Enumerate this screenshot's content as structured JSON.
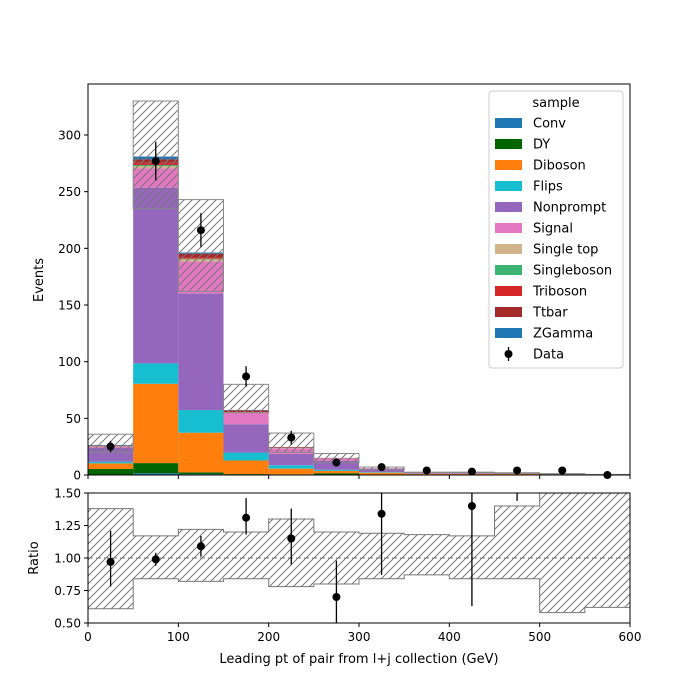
{
  "chart_data": [
    {
      "type": "bar",
      "subtype": "stacked-histogram",
      "ylabel": "Events",
      "xlim": [
        0,
        600
      ],
      "ylim": [
        0,
        345
      ],
      "yticks": [
        0,
        50,
        100,
        150,
        200,
        250,
        300
      ],
      "bin_edges": [
        0,
        50,
        100,
        150,
        200,
        250,
        300,
        350,
        400,
        450,
        500,
        550,
        600
      ],
      "legend": {
        "title": "sample",
        "placement": "top-right"
      },
      "series": [
        {
          "name": "Conv",
          "color": "#1f77b4",
          "values": [
            0.3,
            1.5,
            0.8,
            0.3,
            0.1,
            0.1,
            0,
            0,
            0,
            0,
            0,
            0
          ]
        },
        {
          "name": "DY",
          "color": "#006400",
          "values": [
            5,
            9,
            1.5,
            0.5,
            0.5,
            1.5,
            0,
            0,
            0,
            0,
            0,
            0
          ]
        },
        {
          "name": "Diboson",
          "color": "#ff7f0e",
          "values": [
            5,
            70,
            35,
            12,
            5,
            2,
            2,
            1,
            1,
            1,
            1,
            0
          ]
        },
        {
          "name": "Flips",
          "color": "#17becf",
          "values": [
            1.5,
            18,
            20,
            7,
            3,
            1,
            0.5,
            0,
            0,
            0,
            0,
            0
          ]
        },
        {
          "name": "Nonprompt",
          "color": "#9467bd",
          "values": [
            12,
            155,
            103,
            25,
            10,
            8,
            3,
            0.5,
            0.5,
            0.3,
            0,
            0
          ]
        },
        {
          "name": "Signal",
          "color": "#e377c2",
          "values": [
            1,
            17,
            28,
            10,
            5,
            2,
            0.5,
            0.3,
            0.2,
            0.2,
            0,
            0
          ]
        },
        {
          "name": "Single top",
          "color": "#d2b48c",
          "values": [
            0.2,
            2,
            2,
            0.5,
            0.2,
            0.1,
            0,
            0,
            0,
            0,
            0,
            0
          ]
        },
        {
          "name": "Singleboson",
          "color": "#3cb371",
          "values": [
            0.2,
            1,
            0.5,
            0.2,
            0.1,
            0,
            0,
            0,
            0,
            0,
            0,
            0
          ]
        },
        {
          "name": "Triboson",
          "color": "#d62728",
          "values": [
            0.2,
            2,
            1.5,
            0.5,
            0.2,
            0.1,
            0,
            0,
            0,
            0,
            0,
            0
          ]
        },
        {
          "name": "Ttbar",
          "color": "#a52a2a",
          "values": [
            0.5,
            3,
            3,
            1,
            0.5,
            0.2,
            0,
            0,
            0,
            0,
            0,
            0
          ]
        },
        {
          "name": "ZGamma",
          "color": "#1f77b4",
          "values": [
            0.5,
            2.5,
            1,
            0.3,
            0.1,
            0.1,
            0,
            0,
            0,
            0,
            0,
            0
          ]
        }
      ],
      "uncertainty_band": {
        "down": [
          20,
          235,
          162,
          55,
          20,
          11,
          4.5,
          2,
          2,
          1.5,
          0.8,
          0.3
        ],
        "up": [
          36,
          330,
          243,
          80,
          37,
          19,
          7,
          2.5,
          2.5,
          2,
          1.2,
          0.5
        ]
      },
      "data": {
        "name": "Data",
        "color": "#000000",
        "x": [
          25,
          75,
          125,
          175,
          225,
          275,
          325,
          375,
          425,
          475,
          525,
          575
        ],
        "y": [
          25,
          277,
          216,
          87,
          33,
          11,
          7,
          4,
          3,
          4,
          4,
          0
        ],
        "yerr": [
          5,
          17,
          15,
          9,
          6,
          3.3,
          2.6,
          2,
          1.7,
          2,
          2,
          1
        ]
      }
    },
    {
      "type": "scatter",
      "subtype": "ratio",
      "xlabel": "Leading pt of pair from l+j collection (GeV)",
      "ylabel": "Ratio",
      "xlim": [
        0,
        600
      ],
      "ylim": [
        0.5,
        1.5
      ],
      "xticks": [
        0,
        100,
        200,
        300,
        400,
        500,
        600
      ],
      "yticks": [
        0.5,
        0.75,
        1.0,
        1.25,
        1.5
      ],
      "ytick_labels": [
        "0.50",
        "0.75",
        "1.00",
        "1.25",
        "1.50"
      ],
      "reference_line": 1.0,
      "bin_edges": [
        0,
        50,
        100,
        150,
        200,
        250,
        300,
        350,
        400,
        450,
        500,
        550,
        600
      ],
      "band_down": [
        0.61,
        0.84,
        0.82,
        0.84,
        0.78,
        0.8,
        0.84,
        0.87,
        0.84,
        0.84,
        0.58,
        0.62
      ],
      "band_up": [
        1.38,
        1.17,
        1.22,
        1.2,
        1.3,
        1.2,
        1.19,
        1.18,
        1.17,
        1.4,
        1.5,
        1.5
      ],
      "points": {
        "x": [
          25,
          75,
          125,
          175,
          225,
          275,
          325,
          425
        ],
        "y": [
          0.97,
          0.99,
          1.09,
          1.31,
          1.15,
          0.7,
          1.34,
          1.4
        ],
        "yerr_low": [
          0.19,
          0.05,
          0.08,
          0.13,
          0.2,
          0.28,
          0.47,
          0.77
        ],
        "yerr_high": [
          0.24,
          0.05,
          0.08,
          0.15,
          0.23,
          0.28,
          0.47,
          0.77
        ]
      },
      "partial_errorbars": [
        {
          "x": 475,
          "ymin": 1.44,
          "ymax": 1.5
        }
      ]
    }
  ]
}
